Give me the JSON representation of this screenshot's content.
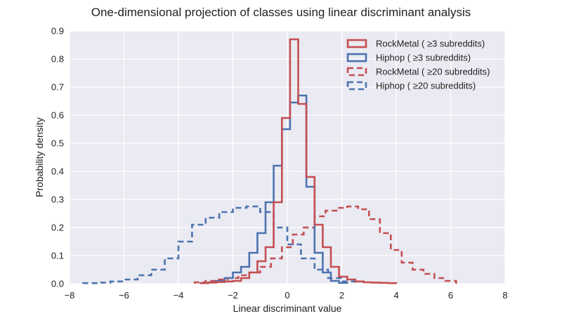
{
  "chart_data": {
    "type": "step-histogram",
    "title": "One-dimensional projection of classes using linear discriminant analysis",
    "xlabel": "Linear discriminant value",
    "ylabel": "Probability density",
    "xlim": [
      -8,
      8
    ],
    "ylim": [
      0,
      0.9
    ],
    "x_ticks": [
      -8,
      -6,
      -4,
      -2,
      0,
      2,
      4,
      6,
      8
    ],
    "x_tick_labels": [
      "−8",
      "−6",
      "−4",
      "−2",
      "0",
      "2",
      "4",
      "6",
      "8"
    ],
    "y_ticks": [
      0,
      0.1,
      0.2,
      0.3,
      0.4,
      0.5,
      0.6,
      0.7,
      0.8,
      0.9
    ],
    "y_tick_labels": [
      "0.0",
      "0.1",
      "0.2",
      "0.3",
      "0.4",
      "0.5",
      "0.6",
      "0.7",
      "0.8",
      "0.9"
    ],
    "grid": true,
    "background": "#eaeaf2",
    "legend_position": "top-right",
    "series": [
      {
        "name": "RockMetal ( ≥3 subreddits)",
        "color": "#c44e52",
        "dash": "solid",
        "edges": [
          -3.2,
          -2.9,
          -2.6,
          -2.3,
          -2.0,
          -1.7,
          -1.4,
          -1.1,
          -0.8,
          -0.5,
          -0.2,
          0.1,
          0.4,
          0.7,
          1.0,
          1.3,
          1.6,
          1.9,
          2.2,
          2.5,
          2.8,
          3.1,
          3.4,
          3.7,
          4.0
        ],
        "values": [
          0.002,
          0.004,
          0.006,
          0.008,
          0.01,
          0.02,
          0.04,
          0.08,
          0.13,
          0.29,
          0.59,
          0.87,
          0.64,
          0.38,
          0.21,
          0.13,
          0.06,
          0.025,
          0.015,
          0.008,
          0.005,
          0.004,
          0.003,
          0.002
        ]
      },
      {
        "name": "Hiphop ( ≥3 subreddits)",
        "color": "#4c72b0",
        "dash": "solid",
        "edges": [
          -3.2,
          -2.9,
          -2.6,
          -2.3,
          -2.0,
          -1.7,
          -1.4,
          -1.1,
          -0.8,
          -0.5,
          -0.2,
          0.1,
          0.4,
          0.7,
          1.0,
          1.3,
          1.6,
          1.9,
          2.2
        ],
        "values": [
          0.002,
          0.005,
          0.01,
          0.02,
          0.04,
          0.06,
          0.11,
          0.18,
          0.29,
          0.42,
          0.55,
          0.645,
          0.67,
          0.345,
          0.11,
          0.04,
          0.01,
          0.003
        ]
      },
      {
        "name": "RockMetal ( ≥20 subreddits)",
        "color": "#c44e52",
        "dash": "dashed",
        "edges": [
          -3.4,
          -3.0,
          -2.6,
          -2.2,
          -1.8,
          -1.4,
          -1.0,
          -0.6,
          -0.2,
          0.2,
          0.6,
          1.0,
          1.4,
          1.8,
          2.2,
          2.6,
          3.0,
          3.4,
          3.8,
          4.2,
          4.6,
          5.0,
          5.4,
          5.8,
          6.2
        ],
        "values": [
          0.005,
          0.01,
          0.015,
          0.02,
          0.03,
          0.04,
          0.06,
          0.09,
          0.13,
          0.175,
          0.2,
          0.24,
          0.26,
          0.27,
          0.275,
          0.265,
          0.23,
          0.18,
          0.12,
          0.075,
          0.05,
          0.035,
          0.02,
          0.01
        ]
      },
      {
        "name": "Hiphop ( ≥20 subreddits)",
        "color": "#4c72b0",
        "dash": "dashed",
        "edges": [
          -7.5,
          -7.0,
          -6.5,
          -6.0,
          -5.5,
          -5.0,
          -4.5,
          -4.0,
          -3.5,
          -3.0,
          -2.5,
          -2.0,
          -1.5,
          -1.0,
          -0.5,
          0.0,
          0.5,
          1.0,
          1.5,
          2.0,
          2.5
        ],
        "values": [
          0.002,
          0.004,
          0.008,
          0.015,
          0.03,
          0.05,
          0.09,
          0.15,
          0.21,
          0.235,
          0.255,
          0.27,
          0.275,
          0.255,
          0.2,
          0.14,
          0.09,
          0.05,
          0.02,
          0.008
        ]
      }
    ]
  }
}
